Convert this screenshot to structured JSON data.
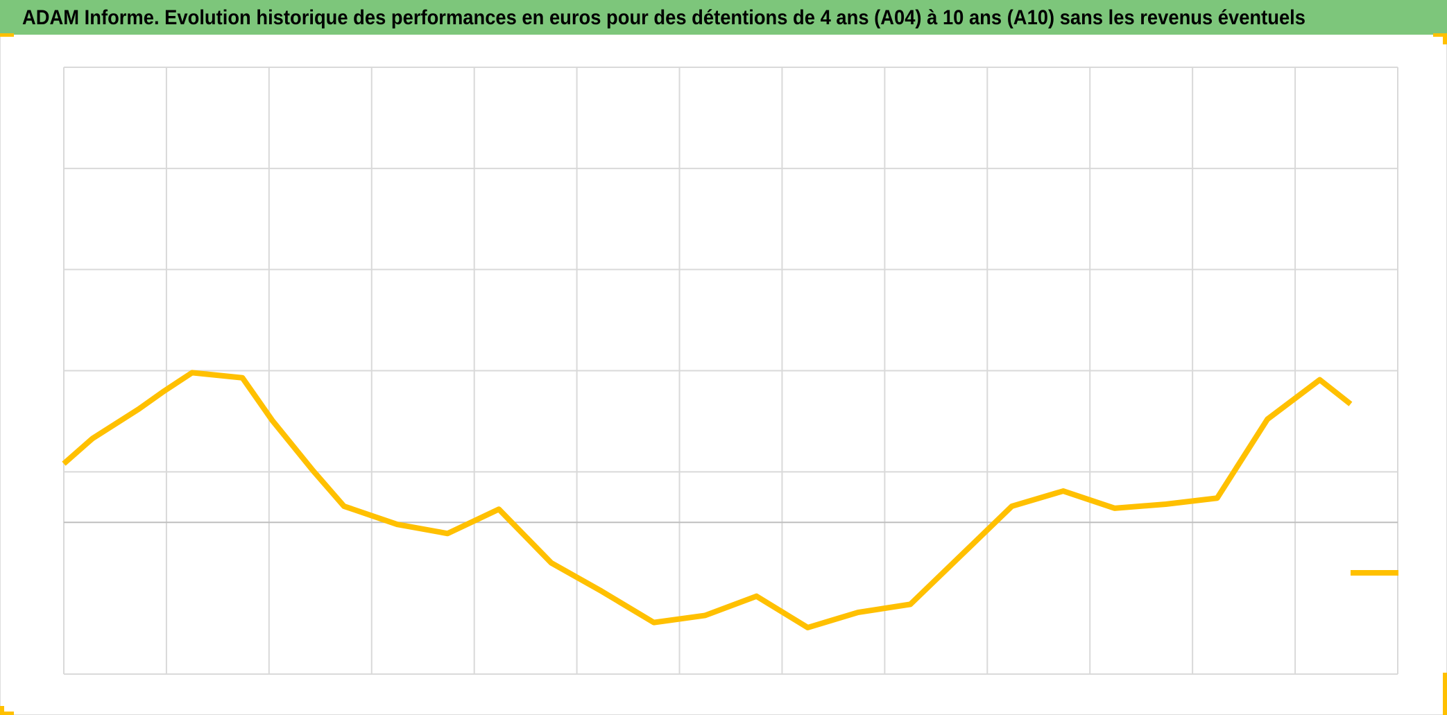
{
  "chart_data": {
    "type": "line",
    "title": "ADAM Informe. Evolution historique des performances en euros pour des détentions de 4 ans (A04) à 10 ans (A10) sans les revenus éventuels",
    "x": [
      0,
      0.28,
      0.73,
      0.98,
      1.25,
      1.74,
      2.03,
      2.43,
      2.73,
      3.25,
      3.74,
      4.24,
      4.75,
      5.24,
      5.75,
      6.25,
      6.75,
      7.25,
      7.74,
      8.25,
      8.74,
      9.24,
      9.74,
      10.24,
      10.74,
      11.24,
      11.73,
      12.24,
      12.54
    ],
    "series": [
      {
        "color": "#ffc000",
        "values": [
          0.58,
          0.83,
          1.12,
          1.3,
          1.48,
          1.43,
          1.01,
          0.51,
          0.16,
          -0.02,
          -0.11,
          0.13,
          -0.4,
          -0.68,
          -0.99,
          -0.92,
          -0.73,
          -1.04,
          -0.89,
          -0.81,
          -0.33,
          0.16,
          0.31,
          0.14,
          0.18,
          0.24,
          1.02,
          1.41,
          1.17
        ]
      }
    ],
    "xlim": [
      0,
      13
    ],
    "xticks": [
      0,
      1,
      2,
      3,
      4,
      5,
      6,
      7,
      8,
      9,
      10,
      11,
      12,
      13
    ],
    "ylim": [
      -1.5,
      4.5
    ],
    "yticks": [
      0.5,
      1.5,
      2.5,
      3.5,
      4.5
    ],
    "zero_line": true,
    "grid": true
  }
}
